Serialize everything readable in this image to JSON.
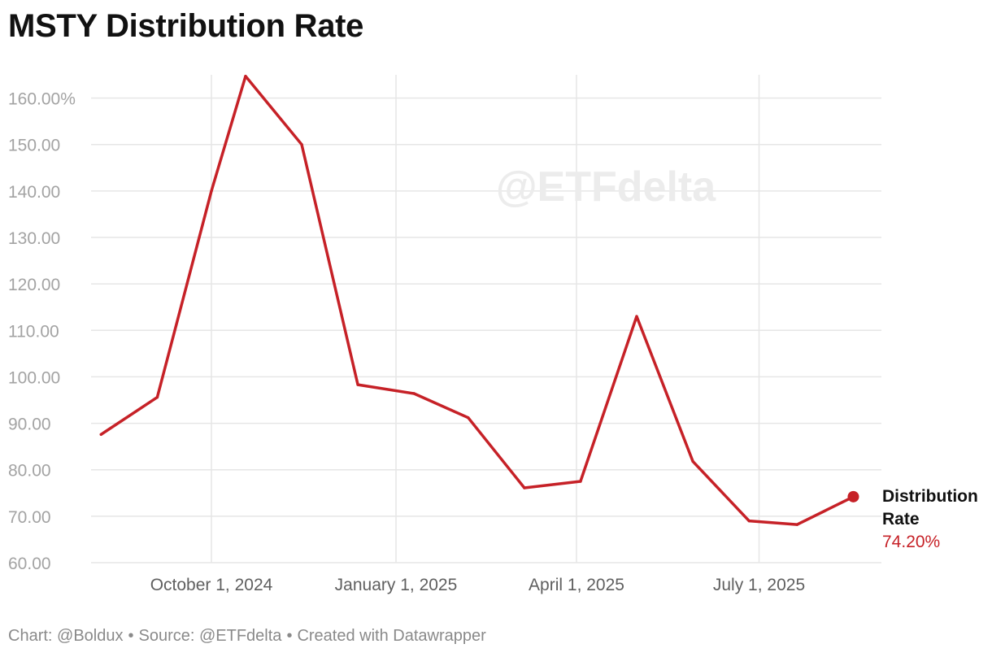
{
  "title": "MSTY Distribution Rate",
  "watermark": "@ETFdelta",
  "footer": {
    "chart_credit": "Chart: @Boldux",
    "source": "Source: @ETFdelta",
    "created": "Created with Datawrapper",
    "separator": "•"
  },
  "colors": {
    "line": "#c62127",
    "grid": "#e6e6e6"
  },
  "chart_data": {
    "type": "line",
    "title": "MSTY Distribution Rate",
    "xlabel": "",
    "ylabel": "",
    "ylim": [
      60,
      165
    ],
    "xlim": [
      "2024-08-02",
      "2025-08-31"
    ],
    "grid": true,
    "y_ticks": [
      {
        "value": 160,
        "label": "160.00%"
      },
      {
        "value": 150,
        "label": "150.00"
      },
      {
        "value": 140,
        "label": "140.00"
      },
      {
        "value": 130,
        "label": "130.00"
      },
      {
        "value": 120,
        "label": "120.00"
      },
      {
        "value": 110,
        "label": "110.00"
      },
      {
        "value": 100,
        "label": "100.00"
      },
      {
        "value": 90,
        "label": "90.00"
      },
      {
        "value": 80,
        "label": "80.00"
      },
      {
        "value": 70,
        "label": "70.00"
      },
      {
        "value": 60,
        "label": "60.00"
      }
    ],
    "x_ticks": [
      {
        "date": "2024-10-01",
        "label": "October 1, 2024"
      },
      {
        "date": "2025-01-01",
        "label": "January 1, 2025"
      },
      {
        "date": "2025-04-01",
        "label": "April 1, 2025"
      },
      {
        "date": "2025-07-01",
        "label": "July 1, 2025"
      }
    ],
    "series": [
      {
        "name": "Distribution Rate",
        "color": "#c62127",
        "points": [
          {
            "x": "2024-08-07",
            "y": 87.6
          },
          {
            "x": "2024-09-04",
            "y": 95.6
          },
          {
            "x": "2024-10-01",
            "y": 140.0
          },
          {
            "x": "2024-10-18",
            "y": 164.7
          },
          {
            "x": "2024-11-15",
            "y": 150.0
          },
          {
            "x": "2024-12-13",
            "y": 98.3
          },
          {
            "x": "2025-01-10",
            "y": 96.4
          },
          {
            "x": "2025-02-06",
            "y": 91.2
          },
          {
            "x": "2025-03-06",
            "y": 76.1
          },
          {
            "x": "2025-04-03",
            "y": 77.5
          },
          {
            "x": "2025-05-01",
            "y": 113.0
          },
          {
            "x": "2025-05-29",
            "y": 81.8
          },
          {
            "x": "2025-06-26",
            "y": 69.0
          },
          {
            "x": "2025-07-20",
            "y": 68.2
          },
          {
            "x": "2025-08-17",
            "y": 74.2
          }
        ]
      }
    ],
    "end_label": {
      "name_lines": [
        "Distribution",
        "Rate"
      ],
      "value": "74.20%"
    }
  }
}
